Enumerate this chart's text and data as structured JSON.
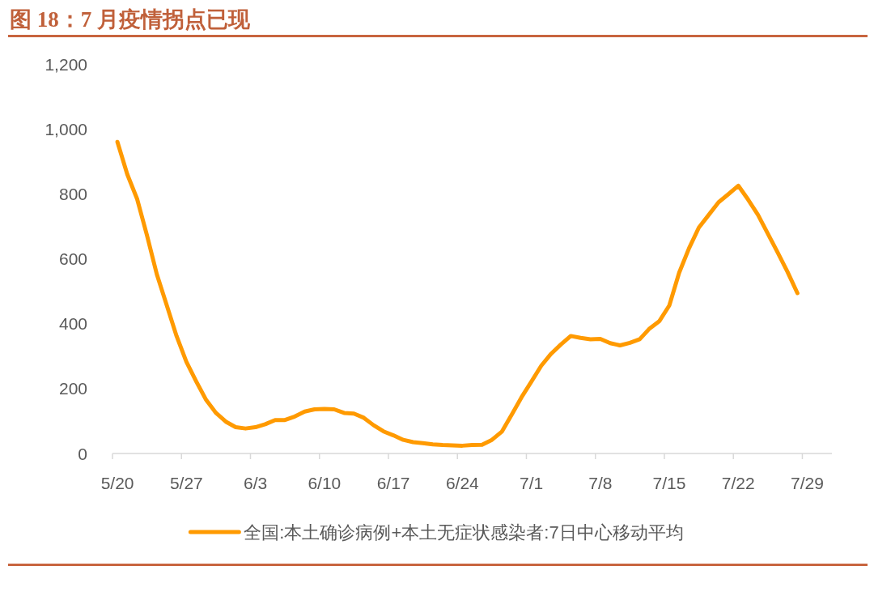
{
  "chart_data": {
    "type": "line",
    "title": "图 18：7 月疫情拐点已现",
    "categories": [
      "5/20",
      null,
      null,
      null,
      null,
      null,
      null,
      "5/27",
      null,
      null,
      null,
      null,
      null,
      null,
      "6/3",
      null,
      null,
      null,
      null,
      null,
      null,
      "6/10",
      null,
      null,
      null,
      null,
      null,
      null,
      "6/17",
      null,
      null,
      null,
      null,
      null,
      null,
      "6/24",
      null,
      null,
      null,
      null,
      null,
      null,
      "7/1",
      null,
      null,
      null,
      null,
      null,
      null,
      "7/8",
      null,
      null,
      null,
      null,
      null,
      null,
      "7/15",
      null,
      null,
      null,
      null,
      null,
      null,
      "7/22",
      null,
      null,
      null,
      null,
      null,
      null,
      "7/29",
      null,
      null
    ],
    "series": [
      {
        "name": "全国:本土确诊病例+本土无症状感染者:7日中心移动平均",
        "color": "#ff9a00",
        "values": [
          960,
          860,
          784,
          672,
          552,
          457,
          362,
          282,
          222,
          165,
          125,
          98,
          81,
          77,
          81,
          90,
          103,
          103,
          114,
          129,
          136,
          137,
          136,
          125,
          123,
          110,
          87,
          68,
          56,
          42,
          35,
          32,
          28,
          26,
          25,
          24,
          26,
          27,
          42,
          67,
          119,
          173,
          221,
          270,
          307,
          336,
          362,
          356,
          352,
          353,
          340,
          333,
          341,
          352,
          385,
          408,
          456,
          557,
          632,
          696,
          735,
          774,
          799,
          825,
          782,
          735,
          677,
          619,
          559,
          494,
          null,
          null,
          null
        ]
      }
    ],
    "ylim": [
      0,
      1200
    ],
    "yticks": [
      0,
      200,
      400,
      600,
      800,
      {
        "value": 1000,
        "label": "1,000"
      },
      {
        "value": 1200,
        "label": "1,200"
      }
    ],
    "legend": "bottom"
  }
}
